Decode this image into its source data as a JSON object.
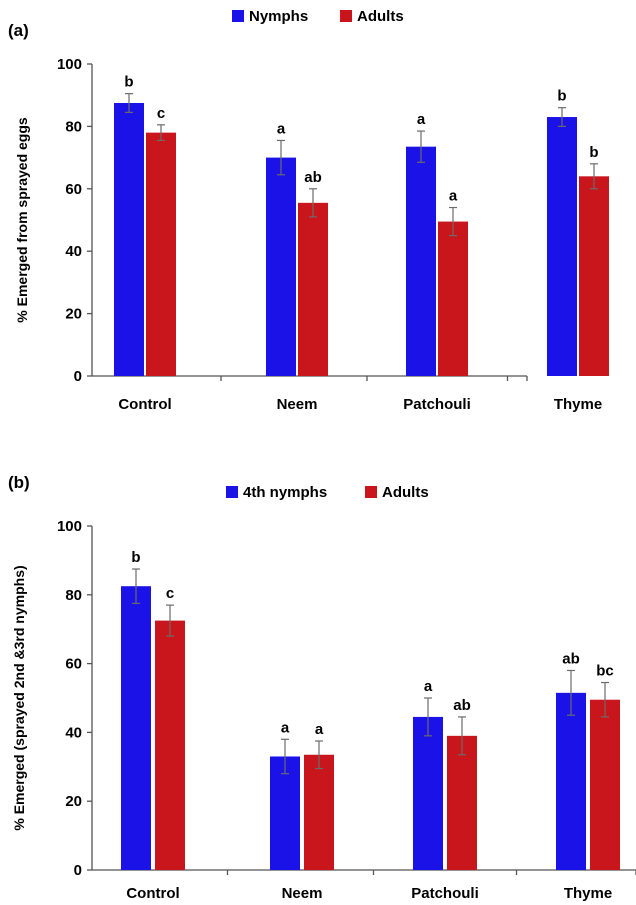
{
  "chart_data": [
    {
      "type": "bar",
      "panel_label": "(a)",
      "categories": [
        "Control",
        "Neem",
        "Patchouli",
        "Thyme"
      ],
      "ylabel": "% Emerged from sprayed eggs",
      "xlabel": "",
      "ylim": [
        0,
        100
      ],
      "yticks": [
        0,
        20,
        40,
        60,
        80,
        100
      ],
      "grid": false,
      "legend_position": "top-center",
      "series": [
        {
          "name": "Nymphs",
          "color": "#1a12e6",
          "values": [
            87.5,
            70,
            73.5,
            83
          ],
          "errors": [
            3,
            5.5,
            5,
            3
          ],
          "labels": [
            "b",
            "a",
            "a",
            "b"
          ]
        },
        {
          "name": "Adults",
          "color": "#c8161c",
          "values": [
            78,
            55.5,
            49.5,
            64
          ],
          "errors": [
            2.5,
            4.5,
            4.5,
            4
          ],
          "labels": [
            "c",
            "ab",
            "a",
            "b"
          ]
        }
      ]
    },
    {
      "type": "bar",
      "panel_label": "(b)",
      "categories": [
        "Control",
        "Neem",
        "Patchouli",
        "Thyme"
      ],
      "ylabel": "% Emerged (sprayed 2nd &3rd nymphs)",
      "xlabel": "",
      "ylim": [
        0,
        100
      ],
      "yticks": [
        0,
        20,
        40,
        60,
        80,
        100
      ],
      "grid": false,
      "legend_position": "top-center",
      "series": [
        {
          "name": "4th nymphs",
          "color": "#1a12e6",
          "values": [
            82.5,
            33,
            44.5,
            51.5
          ],
          "errors": [
            5,
            5,
            5.5,
            6.5
          ],
          "labels": [
            "b",
            "a",
            "a",
            "ab"
          ]
        },
        {
          "name": "Adults",
          "color": "#c8161c",
          "values": [
            72.5,
            33.5,
            39,
            49.5
          ],
          "errors": [
            4.5,
            4,
            5.5,
            5
          ],
          "labels": [
            "c",
            "a",
            "ab",
            "bc"
          ]
        }
      ]
    }
  ]
}
